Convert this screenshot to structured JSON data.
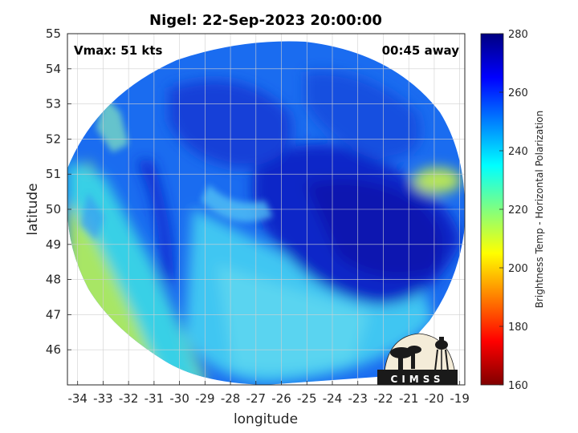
{
  "title": "Nigel: 22-Sep-2023 20:00:00",
  "vmax_label": "Vmax: 51 kts",
  "away_label": "00:45 away",
  "logo_text": "CIMSS",
  "chart_data": {
    "type": "heatmap",
    "xlabel": "longitude",
    "ylabel": "latitude",
    "xlim": [
      -34.4,
      -18.8
    ],
    "ylim": [
      45,
      55
    ],
    "xticks": [
      -34,
      -33,
      -32,
      -31,
      -30,
      -29,
      -28,
      -27,
      -26,
      -25,
      -24,
      -23,
      -22,
      -21,
      -20,
      -19
    ],
    "yticks": [
      46,
      47,
      48,
      49,
      50,
      51,
      52,
      53,
      54,
      55
    ],
    "grid": true,
    "colorbar": {
      "label": "Brightness Temp - Horizontal Polarization",
      "min": 160,
      "max": 280,
      "ticks": [
        160,
        180,
        200,
        220,
        240,
        260,
        280
      ],
      "colormap": "jet"
    }
  }
}
